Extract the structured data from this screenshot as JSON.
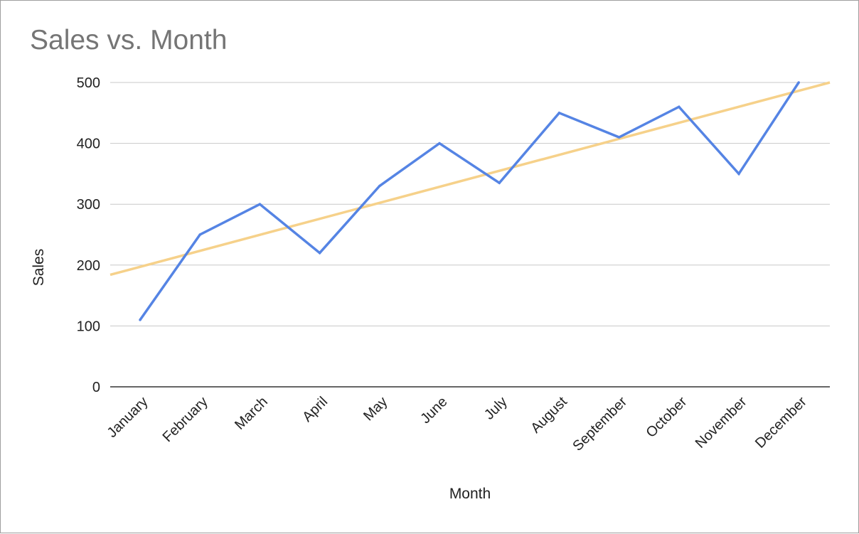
{
  "chart_data": {
    "type": "line",
    "title": "Sales vs. Month",
    "xlabel": "Month",
    "ylabel": "Sales",
    "categories": [
      "January",
      "February",
      "March",
      "April",
      "May",
      "June",
      "July",
      "August",
      "September",
      "October",
      "November",
      "December"
    ],
    "series": [
      {
        "values": [
          110,
          250,
          300,
          220,
          330,
          400,
          335,
          450,
          410,
          460,
          350,
          500
        ],
        "color": "#5584e4"
      }
    ],
    "trendline": {
      "type": "linear",
      "start": 184,
      "end": 500,
      "color": "#f6d18a"
    },
    "ylim": [
      0,
      500
    ],
    "yticks": [
      0,
      100,
      200,
      300,
      400,
      500
    ],
    "grid": true,
    "legend": "none"
  }
}
